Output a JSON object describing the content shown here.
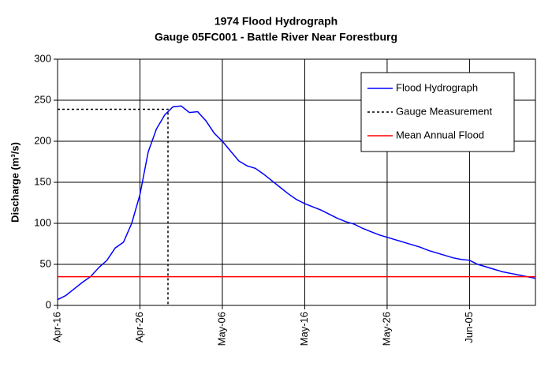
{
  "chart_data": {
    "type": "line",
    "title": "1974 Flood Hydrograph",
    "subtitle": "Gauge 05FC001 - Battle River Near Forestburg",
    "y_label": "Discharge (m³/s)",
    "xlim": [
      0,
      58
    ],
    "xticks": [
      {
        "value": 0,
        "label": "Apr-16"
      },
      {
        "value": 10,
        "label": "Apr-26"
      },
      {
        "value": 20,
        "label": "May-06"
      },
      {
        "value": 30,
        "label": "May-16"
      },
      {
        "value": 40,
        "label": "May-26"
      },
      {
        "value": 50,
        "label": "Jun-05"
      }
    ],
    "ylim": [
      0,
      300
    ],
    "yticks": [
      0,
      50,
      100,
      150,
      200,
      250,
      300
    ],
    "grid": true,
    "legend": "upper right",
    "series": [
      {
        "name": "Flood Hydrograph",
        "color": "#0000ff",
        "style": "solid",
        "x": [
          0,
          1,
          2,
          3,
          4,
          5,
          6,
          7,
          8,
          9,
          10,
          11,
          12,
          13,
          14,
          15,
          16,
          17,
          18,
          19,
          20,
          21,
          22,
          23,
          24,
          25,
          26,
          27,
          28,
          29,
          30,
          31,
          32,
          33,
          34,
          35,
          36,
          37,
          38,
          39,
          40,
          41,
          42,
          43,
          44,
          45,
          46,
          47,
          48,
          49,
          50,
          51,
          52,
          53,
          54,
          55,
          56,
          57,
          58
        ],
        "values": [
          7,
          12,
          20,
          28,
          35,
          46,
          55,
          70,
          77,
          100,
          135,
          187,
          215,
          232,
          242,
          243,
          235,
          236,
          225,
          210,
          200,
          188,
          176,
          170,
          167,
          160,
          152,
          144,
          136,
          129,
          124,
          120,
          116,
          111,
          106,
          102,
          99,
          94,
          90,
          86,
          83,
          80,
          77,
          74,
          71,
          67,
          64,
          61,
          58,
          56,
          55,
          50,
          47,
          44,
          41,
          39,
          37,
          35,
          33
        ]
      },
      {
        "name": "Gauge Measurement",
        "color": "#000000",
        "style": "dotted",
        "x": [
          0,
          13.4,
          13.4
        ],
        "values": [
          239,
          239,
          0
        ]
      },
      {
        "name": "Mean Annual Flood",
        "color": "#ff0000",
        "style": "solid",
        "x": [
          0,
          58
        ],
        "values": [
          35,
          35
        ]
      }
    ]
  }
}
